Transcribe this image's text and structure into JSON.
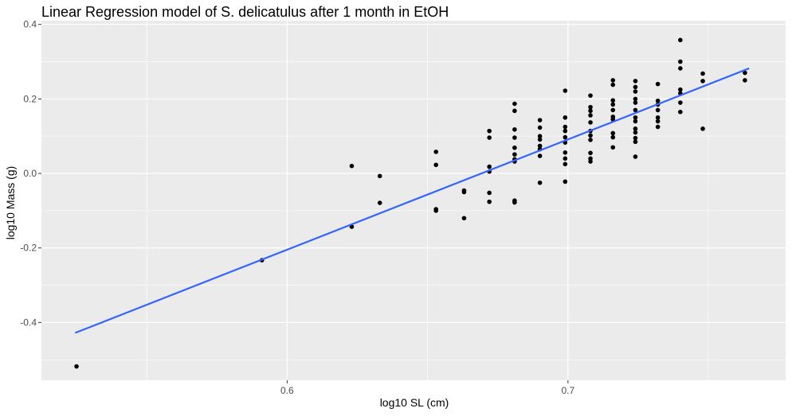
{
  "chart_data": {
    "type": "scatter",
    "title": "Linear Regression model of S. delicatulus after 1 month in EtOH",
    "xlabel": "log10 SL (cm)",
    "ylabel": "log10 Mass (g)",
    "xlim": [
      0.5125,
      0.7775
    ],
    "ylim": [
      -0.555,
      0.41
    ],
    "x_ticks": [
      0.6,
      0.7
    ],
    "x_tick_labels": [
      "0.6",
      "0.7"
    ],
    "y_ticks": [
      -0.4,
      -0.2,
      0.0,
      0.2,
      0.4
    ],
    "y_tick_labels": [
      "-0.4",
      "-0.2",
      "0.0",
      "0.2",
      "0.4"
    ],
    "grid": true,
    "colors": {
      "panel": "#ebebeb",
      "grid": "#ffffff",
      "points": "#000000",
      "fit_line": "#3366ff"
    },
    "fit_line": {
      "x": [
        0.5245,
        0.7645
      ],
      "y": [
        -0.428,
        0.282
      ]
    },
    "series": [
      {
        "points": [
          [
            0.525,
            -0.518
          ],
          [
            0.591,
            -0.233
          ],
          [
            0.623,
            0.02
          ],
          [
            0.623,
            -0.143
          ],
          [
            0.633,
            -0.007
          ],
          [
            0.633,
            -0.079
          ],
          [
            0.653,
            0.058
          ],
          [
            0.653,
            0.023
          ],
          [
            0.653,
            -0.096
          ],
          [
            0.653,
            -0.1
          ],
          [
            0.663,
            -0.046
          ],
          [
            0.663,
            -0.05
          ],
          [
            0.663,
            -0.12
          ],
          [
            0.672,
            0.114
          ],
          [
            0.672,
            0.096
          ],
          [
            0.672,
            0.018
          ],
          [
            0.672,
            0.005
          ],
          [
            0.672,
            -0.052
          ],
          [
            0.672,
            -0.076
          ],
          [
            0.681,
            0.187
          ],
          [
            0.681,
            0.168
          ],
          [
            0.681,
            0.118
          ],
          [
            0.681,
            0.096
          ],
          [
            0.681,
            0.069
          ],
          [
            0.681,
            0.051
          ],
          [
            0.681,
            0.038
          ],
          [
            0.681,
            0.032
          ],
          [
            0.681,
            -0.073
          ],
          [
            0.681,
            -0.078
          ],
          [
            0.69,
            0.143
          ],
          [
            0.69,
            0.123
          ],
          [
            0.69,
            0.1
          ],
          [
            0.69,
            0.091
          ],
          [
            0.69,
            0.074
          ],
          [
            0.69,
            0.065
          ],
          [
            0.69,
            0.047
          ],
          [
            0.69,
            -0.025
          ],
          [
            0.699,
            0.222
          ],
          [
            0.699,
            0.15
          ],
          [
            0.699,
            0.125
          ],
          [
            0.699,
            0.114
          ],
          [
            0.699,
            0.097
          ],
          [
            0.699,
            0.083
          ],
          [
            0.699,
            0.056
          ],
          [
            0.699,
            0.04
          ],
          [
            0.699,
            0.025
          ],
          [
            0.699,
            -0.022
          ],
          [
            0.708,
            0.209
          ],
          [
            0.708,
            0.178
          ],
          [
            0.708,
            0.168
          ],
          [
            0.708,
            0.156
          ],
          [
            0.708,
            0.137
          ],
          [
            0.708,
            0.114
          ],
          [
            0.708,
            0.102
          ],
          [
            0.708,
            0.09
          ],
          [
            0.708,
            0.055
          ],
          [
            0.708,
            0.04
          ],
          [
            0.708,
            0.032
          ],
          [
            0.716,
            0.25
          ],
          [
            0.716,
            0.238
          ],
          [
            0.716,
            0.196
          ],
          [
            0.716,
            0.185
          ],
          [
            0.716,
            0.17
          ],
          [
            0.716,
            0.152
          ],
          [
            0.716,
            0.145
          ],
          [
            0.716,
            0.108
          ],
          [
            0.716,
            0.097
          ],
          [
            0.716,
            0.07
          ],
          [
            0.724,
            0.248
          ],
          [
            0.724,
            0.232
          ],
          [
            0.724,
            0.22
          ],
          [
            0.724,
            0.2
          ],
          [
            0.724,
            0.19
          ],
          [
            0.724,
            0.17
          ],
          [
            0.724,
            0.15
          ],
          [
            0.724,
            0.14
          ],
          [
            0.724,
            0.12
          ],
          [
            0.724,
            0.11
          ],
          [
            0.724,
            0.095
          ],
          [
            0.724,
            0.085
          ],
          [
            0.724,
            0.045
          ],
          [
            0.732,
            0.24
          ],
          [
            0.732,
            0.195
          ],
          [
            0.732,
            0.185
          ],
          [
            0.732,
            0.17
          ],
          [
            0.732,
            0.15
          ],
          [
            0.732,
            0.14
          ],
          [
            0.732,
            0.125
          ],
          [
            0.74,
            0.358
          ],
          [
            0.74,
            0.3
          ],
          [
            0.74,
            0.282
          ],
          [
            0.74,
            0.225
          ],
          [
            0.74,
            0.215
          ],
          [
            0.74,
            0.19
          ],
          [
            0.74,
            0.165
          ],
          [
            0.748,
            0.268
          ],
          [
            0.748,
            0.248
          ],
          [
            0.748,
            0.12
          ],
          [
            0.763,
            0.27
          ],
          [
            0.763,
            0.25
          ]
        ]
      }
    ]
  }
}
